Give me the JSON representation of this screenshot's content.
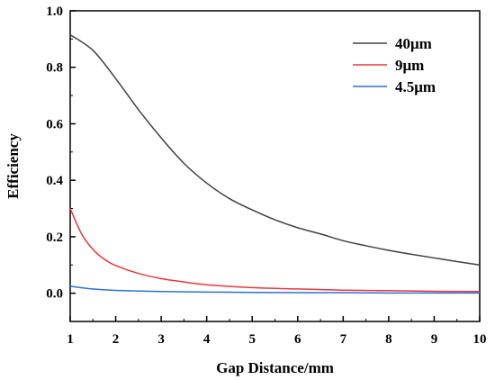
{
  "chart_data": {
    "type": "line",
    "xlabel": "Gap Distance/mm",
    "ylabel": "Efficiency",
    "xlim": [
      1,
      10
    ],
    "ylim": [
      -0.1,
      1.0
    ],
    "x_ticks": [
      "1",
      "2",
      "3",
      "4",
      "5",
      "6",
      "7",
      "8",
      "9",
      "10"
    ],
    "y_ticks": [
      "0.0",
      "0.2",
      "0.4",
      "0.6",
      "0.8",
      "1.0"
    ],
    "grid": false,
    "legend_position": "top-right",
    "series": [
      {
        "name": "40μm",
        "color": "#404040",
        "x": [
          1,
          1.5,
          2,
          2.5,
          3,
          3.5,
          4,
          4.5,
          5,
          5.5,
          6,
          6.5,
          7,
          7.5,
          8,
          8.5,
          9,
          9.5,
          10
        ],
        "y": [
          0.915,
          0.86,
          0.76,
          0.65,
          0.55,
          0.46,
          0.39,
          0.335,
          0.295,
          0.26,
          0.232,
          0.21,
          0.186,
          0.168,
          0.152,
          0.138,
          0.125,
          0.112,
          0.1
        ]
      },
      {
        "name": "9μm",
        "color": "#e8383d",
        "x": [
          1,
          1.25,
          1.5,
          1.75,
          2,
          2.5,
          3,
          3.5,
          4,
          5,
          6,
          7,
          8,
          9,
          10
        ],
        "y": [
          0.3,
          0.21,
          0.155,
          0.12,
          0.098,
          0.07,
          0.052,
          0.04,
          0.03,
          0.02,
          0.015,
          0.011,
          0.009,
          0.007,
          0.006
        ]
      },
      {
        "name": "4.5μm",
        "color": "#2f6fd6",
        "x": [
          1,
          1.5,
          2,
          3,
          4,
          5,
          6,
          7,
          8,
          9,
          10
        ],
        "y": [
          0.025,
          0.015,
          0.01,
          0.006,
          0.004,
          0.003,
          0.002,
          0.002,
          0.001,
          0.001,
          0.001
        ]
      }
    ]
  }
}
